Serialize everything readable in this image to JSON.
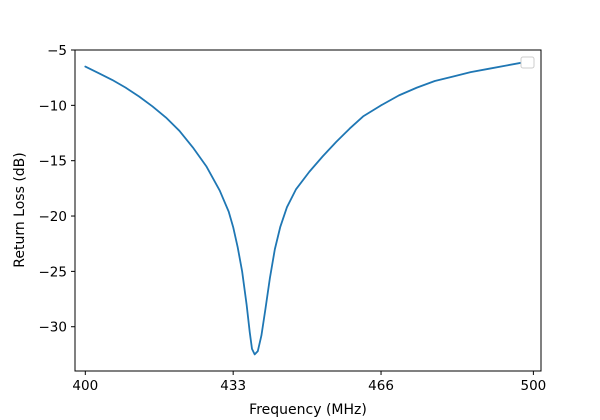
{
  "chart_data": {
    "type": "line",
    "title": "",
    "xlabel": "Frequency (MHz)",
    "ylabel": "Return Loss (dB)",
    "xlim": [
      397.7,
      501.7
    ],
    "ylim": [
      -34.0,
      -5.0
    ],
    "grid": false,
    "legend": {
      "placement": "top-right",
      "entries": []
    },
    "x_ticks": [
      {
        "value": 400,
        "label": "400"
      },
      {
        "value": 433,
        "label": "433"
      },
      {
        "value": 466,
        "label": "466"
      },
      {
        "value": 500,
        "label": "500"
      }
    ],
    "y_ticks": [
      {
        "value": -5,
        "label": "−5"
      },
      {
        "value": -10,
        "label": "−10"
      },
      {
        "value": -15,
        "label": "−15"
      },
      {
        "value": -20,
        "label": "−20"
      },
      {
        "value": -25,
        "label": "−25"
      },
      {
        "value": -30,
        "label": "−30"
      }
    ],
    "series": [
      {
        "color": "#1f77b4",
        "x": [
          400,
          403,
          406,
          409,
          412,
          415,
          418,
          421,
          424,
          427,
          430,
          432,
          433,
          434,
          435,
          436,
          436.7,
          437.2,
          437.8,
          438.5,
          439.3,
          440.2,
          441.2,
          442.3,
          443.5,
          445,
          447,
          450,
          453,
          456,
          459,
          462,
          466,
          470,
          474,
          478,
          482,
          486,
          490,
          494,
          498,
          500
        ],
        "y": [
          -6.5,
          -7.1,
          -7.7,
          -8.4,
          -9.2,
          -10.1,
          -11.1,
          -12.3,
          -13.8,
          -15.5,
          -17.7,
          -19.6,
          -21.0,
          -22.8,
          -25.0,
          -28.0,
          -30.5,
          -32.0,
          -32.5,
          -32.2,
          -30.8,
          -28.4,
          -25.6,
          -23.0,
          -21.0,
          -19.2,
          -17.6,
          -16.0,
          -14.6,
          -13.3,
          -12.1,
          -11.0,
          -10.0,
          -9.1,
          -8.4,
          -7.8,
          -7.4,
          -7.0,
          -6.7,
          -6.4,
          -6.1,
          -5.9
        ]
      }
    ]
  }
}
